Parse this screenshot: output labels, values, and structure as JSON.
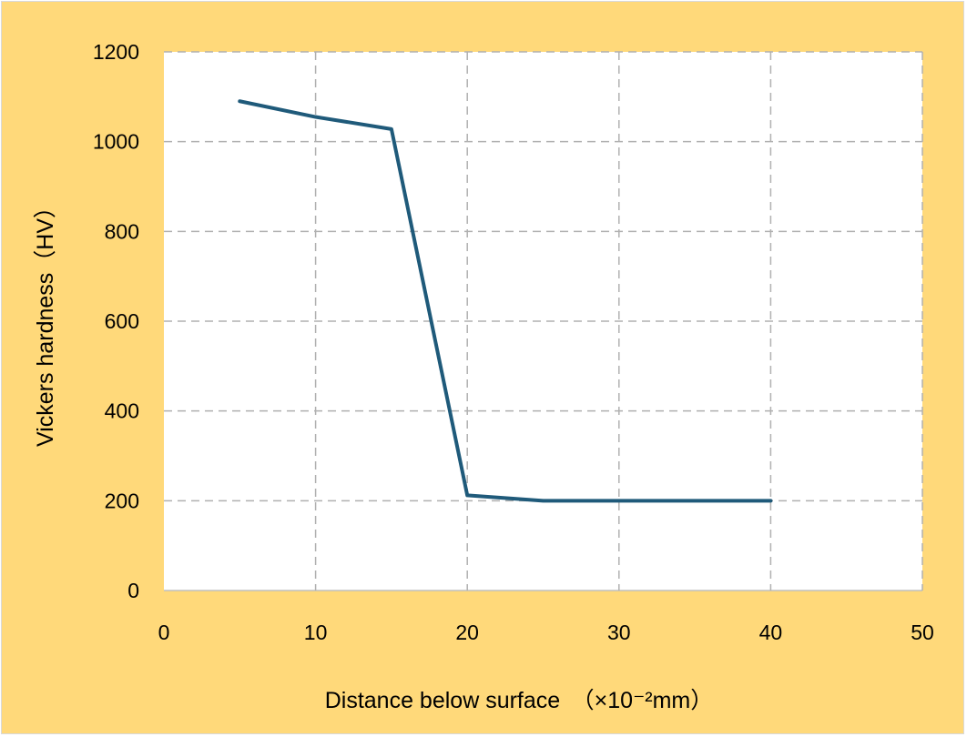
{
  "chart_data": {
    "type": "line",
    "title": "",
    "xlabel": "Distance below surface　（×10⁻²mm）",
    "ylabel": "Vickers hardness（HV）",
    "xlim": [
      0,
      50
    ],
    "ylim": [
      0,
      1200
    ],
    "x_ticks": [
      0,
      10,
      20,
      30,
      40,
      50
    ],
    "y_ticks": [
      0,
      200,
      400,
      600,
      800,
      1000,
      1200
    ],
    "grid": true,
    "legend": "none",
    "series": [
      {
        "x": [
          5,
          10,
          15,
          20,
          25,
          30,
          35,
          40
        ],
        "values": [
          1090,
          1055,
          1028,
          212,
          200,
          200,
          200,
          200
        ],
        "color": "#1f5a7a"
      }
    ]
  },
  "colors": {
    "frame_background": "#ffd97a",
    "plot_background": "#ffffff",
    "grid": "#b0b0b0",
    "line": "#1f5a7a"
  }
}
